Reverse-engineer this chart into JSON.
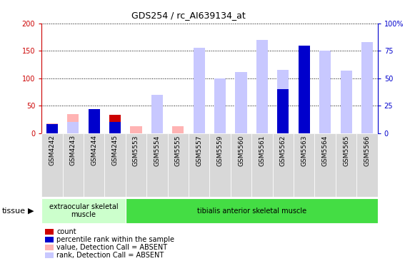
{
  "title": "GDS254 / rc_AI639134_at",
  "categories": [
    "GSM4242",
    "GSM4243",
    "GSM4244",
    "GSM4245",
    "GSM5553",
    "GSM5554",
    "GSM5555",
    "GSM5557",
    "GSM5559",
    "GSM5560",
    "GSM5561",
    "GSM5562",
    "GSM5563",
    "GSM5564",
    "GSM5565",
    "GSM5566"
  ],
  "count": [
    10,
    0,
    42,
    33,
    0,
    0,
    0,
    0,
    0,
    0,
    0,
    0,
    118,
    0,
    0,
    0
  ],
  "percentile_rank": [
    8,
    0,
    22,
    10,
    0,
    0,
    0,
    0,
    0,
    0,
    0,
    40,
    80,
    0,
    0,
    0
  ],
  "value_absent": [
    18,
    35,
    0,
    0,
    13,
    27,
    12,
    108,
    77,
    70,
    165,
    97,
    0,
    110,
    93,
    140
  ],
  "rank_absent": [
    0,
    10,
    0,
    0,
    0,
    35,
    0,
    78,
    50,
    56,
    85,
    58,
    72,
    75,
    57,
    83
  ],
  "ylim_left": [
    0,
    200
  ],
  "ylim_right": [
    0,
    100
  ],
  "yticks_left": [
    0,
    50,
    100,
    150,
    200
  ],
  "ytick_labels_left": [
    "0",
    "50",
    "100",
    "150",
    "200"
  ],
  "yticks_right": [
    0,
    25,
    50,
    75,
    100
  ],
  "ytick_labels_right": [
    "0",
    "25",
    "50",
    "75",
    "100%"
  ],
  "color_count": "#cc0000",
  "color_rank": "#0000cc",
  "color_value_absent": "#ffb3b3",
  "color_rank_absent": "#c8c8ff",
  "tissue_groups": [
    {
      "label": "extraocular skeletal\nmuscle",
      "start": 0,
      "end": 4,
      "color": "#ccffcc"
    },
    {
      "label": "tibialis anterior skeletal muscle",
      "start": 4,
      "end": 16,
      "color": "#44dd44"
    }
  ],
  "tissue_label": "tissue",
  "bar_width": 0.55,
  "legend_items": [
    {
      "color": "#cc0000",
      "label": "count"
    },
    {
      "color": "#0000cc",
      "label": "percentile rank within the sample"
    },
    {
      "color": "#ffb3b3",
      "label": "value, Detection Call = ABSENT"
    },
    {
      "color": "#c8c8ff",
      "label": "rank, Detection Call = ABSENT"
    }
  ]
}
